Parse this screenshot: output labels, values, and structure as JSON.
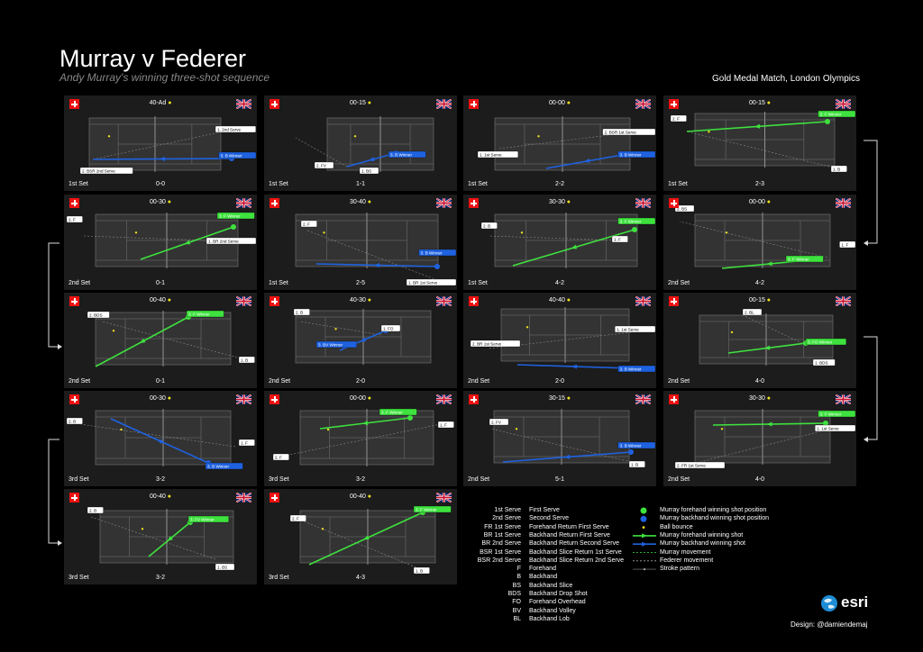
{
  "title": "Murray v Federer",
  "subtitle": "Andy Murray's winning three-shot sequence",
  "event": "Gold Medal Match, London Olympics",
  "credit": "Design: @damiendemaj",
  "logo_text": "esri",
  "colors": {
    "forehand": "#3ee23e",
    "backhand": "#1f62e0",
    "ball": "#f0e020",
    "line": "#9a9a9a"
  },
  "panels": [
    {
      "score": "40-Ad",
      "set": "1st Set",
      "games": "0-0",
      "color": "blue",
      "labels": [
        "1. 2nd Serve",
        "2. BSR 2nd Serve",
        "3. B Winner"
      ]
    },
    {
      "score": "00-15",
      "set": "1st Set",
      "games": "1-1",
      "color": "blue",
      "labels": [
        "2. FV",
        "1. BS",
        "3. B Winner"
      ]
    },
    {
      "score": "00-00",
      "set": "1st Set",
      "games": "2-2",
      "color": "blue",
      "labels": [
        "1. 1st Serve",
        "2. BSR 1st Serve",
        "3. B Winner"
      ]
    },
    {
      "score": "00-15",
      "set": "1st Set",
      "games": "2-3",
      "color": "green",
      "labels": [
        "2. F",
        "3. F Winner",
        "1. B"
      ]
    },
    {
      "score": "00-30",
      "set": "2nd Set",
      "games": "0-1",
      "color": "green",
      "labels": [
        "2. F",
        "3. F Winner",
        "1. BR 2nd Serve"
      ]
    },
    {
      "score": "30-40",
      "set": "1st Set",
      "games": "2-5",
      "color": "blue",
      "labels": [
        "2. F",
        "3. B Winner",
        "1. BR 1st Serve"
      ]
    },
    {
      "score": "30-30",
      "set": "1st Set",
      "games": "4-2",
      "color": "green",
      "labels": [
        "2. B",
        "3. F Winner",
        "1. F"
      ]
    },
    {
      "score": "00-00",
      "set": "2nd Set",
      "games": "4-2",
      "color": "green",
      "labels": [
        "2. BS",
        "3. F Winner",
        "1. F"
      ]
    },
    {
      "score": "00-40",
      "set": "2nd Set",
      "games": "0-1",
      "color": "green",
      "labels": [
        "2. BDS",
        "3. F Winner",
        "1. B"
      ]
    },
    {
      "score": "40-30",
      "set": "2nd Set",
      "games": "2-0",
      "color": "blue",
      "labels": [
        "2. B",
        "1. FO",
        "3. BV Winner"
      ]
    },
    {
      "score": "40-40",
      "set": "2nd Set",
      "games": "2-0",
      "color": "blue",
      "labels": [
        "2. BR 1st Serve",
        "1. 1st Serve",
        "3. B Winner"
      ]
    },
    {
      "score": "00-15",
      "set": "2nd Set",
      "games": "4-0",
      "color": "green",
      "labels": [
        "2. BL",
        "3. FO Winner",
        "1. BDS"
      ]
    },
    {
      "score": "00-30",
      "set": "3rd Set",
      "games": "3-2",
      "color": "blue",
      "labels": [
        "2. B",
        "1. F",
        "3. B Winner"
      ]
    },
    {
      "score": "00-00",
      "set": "3rd Set",
      "games": "3-2",
      "color": "green",
      "labels": [
        "3. F Winner",
        "1. F",
        "2. F"
      ]
    },
    {
      "score": "30-15",
      "set": "2nd Set",
      "games": "5-1",
      "color": "blue",
      "labels": [
        "2. FV",
        "3. B Winner",
        "1. B"
      ]
    },
    {
      "score": "30-30",
      "set": "2nd Set",
      "games": "4-0",
      "color": "green",
      "labels": [
        "3. F Winner",
        "1. 1st Serve",
        "2. FR 1st Serve"
      ]
    },
    {
      "score": "00-40",
      "set": "3rd Set",
      "games": "3-2",
      "color": "green",
      "labels": [
        "2. B",
        "3. FV Winner",
        "1. BS"
      ]
    },
    {
      "score": "00-40",
      "set": "3rd Set",
      "games": "4-3",
      "color": "green",
      "labels": [
        "2. F",
        "3. F Winner",
        "1. B"
      ]
    }
  ],
  "legend_abbr": [
    {
      "abbr": "1st Serve",
      "desc": "First Serve"
    },
    {
      "abbr": "2nd Serve",
      "desc": "Second Serve"
    },
    {
      "abbr": "FR 1st Serve",
      "desc": "Forehand Return First Serve"
    },
    {
      "abbr": "BR 1st Serve",
      "desc": "Backhand Return First Serve"
    },
    {
      "abbr": "BR 2nd Serve",
      "desc": "Backhand Return Second Serve"
    },
    {
      "abbr": "BSR 1st Serve",
      "desc": "Backhand Slice Return 1st Serve"
    },
    {
      "abbr": "BSR 2nd Serve",
      "desc": "Backhand Slice Return 2nd Serve"
    },
    {
      "abbr": "F",
      "desc": "Forehand"
    },
    {
      "abbr": "B",
      "desc": "Backhand"
    },
    {
      "abbr": "BS",
      "desc": "Backhand Slice"
    },
    {
      "abbr": "BDS",
      "desc": "Backhand Drop Shot"
    },
    {
      "abbr": "FO",
      "desc": "Forehand Overhead"
    },
    {
      "abbr": "BV",
      "desc": "Backhand Volley"
    },
    {
      "abbr": "BL",
      "desc": "Backhand Lob"
    }
  ],
  "legend_symbols": [
    "Murray forehand winning shot position",
    "Murray backhand winning shot position",
    "Ball bounce",
    "Murray forehand winning shot",
    "Murray backhand winning shot",
    "Murray movement",
    "Federer movement",
    "Stroke pattern"
  ]
}
